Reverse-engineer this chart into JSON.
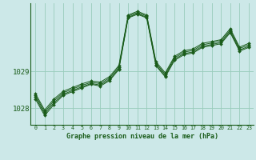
{
  "background_color": "#cce8e8",
  "grid_color": "#99ccbb",
  "line_color": "#1a5c1a",
  "marker_color": "#1a5c1a",
  "title": "Graphe pression niveau de la mer (hPa)",
  "xlim": [
    -0.5,
    23.5
  ],
  "ylim": [
    1027.55,
    1030.85
  ],
  "yticks": [
    1028,
    1029
  ],
  "xticks": [
    0,
    1,
    2,
    3,
    4,
    5,
    6,
    7,
    8,
    9,
    10,
    11,
    12,
    13,
    14,
    15,
    16,
    17,
    18,
    19,
    20,
    21,
    22,
    23
  ],
  "series": [
    [
      1028.25,
      1027.8,
      1028.1,
      1028.35,
      1028.45,
      1028.55,
      1028.65,
      1028.6,
      1028.75,
      1029.05,
      1030.45,
      1030.55,
      1030.45,
      1029.15,
      1028.85,
      1029.3,
      1029.45,
      1029.5,
      1029.65,
      1029.7,
      1029.75,
      1030.05,
      1029.55,
      1029.65
    ],
    [
      1028.3,
      1027.85,
      1028.15,
      1028.38,
      1028.48,
      1028.58,
      1028.67,
      1028.63,
      1028.78,
      1029.08,
      1030.47,
      1030.57,
      1030.47,
      1029.18,
      1028.88,
      1029.33,
      1029.48,
      1029.53,
      1029.68,
      1029.73,
      1029.78,
      1030.08,
      1029.58,
      1029.68
    ],
    [
      1028.35,
      1027.9,
      1028.2,
      1028.42,
      1028.52,
      1028.62,
      1028.7,
      1028.67,
      1028.82,
      1029.12,
      1030.5,
      1030.6,
      1030.5,
      1029.22,
      1028.92,
      1029.37,
      1029.52,
      1029.57,
      1029.72,
      1029.77,
      1029.82,
      1030.12,
      1029.62,
      1029.72
    ],
    [
      1028.4,
      1027.95,
      1028.25,
      1028.46,
      1028.56,
      1028.66,
      1028.74,
      1028.71,
      1028.86,
      1029.16,
      1030.53,
      1030.63,
      1030.53,
      1029.26,
      1028.96,
      1029.41,
      1029.56,
      1029.61,
      1029.76,
      1029.81,
      1029.86,
      1030.16,
      1029.66,
      1029.76
    ]
  ]
}
